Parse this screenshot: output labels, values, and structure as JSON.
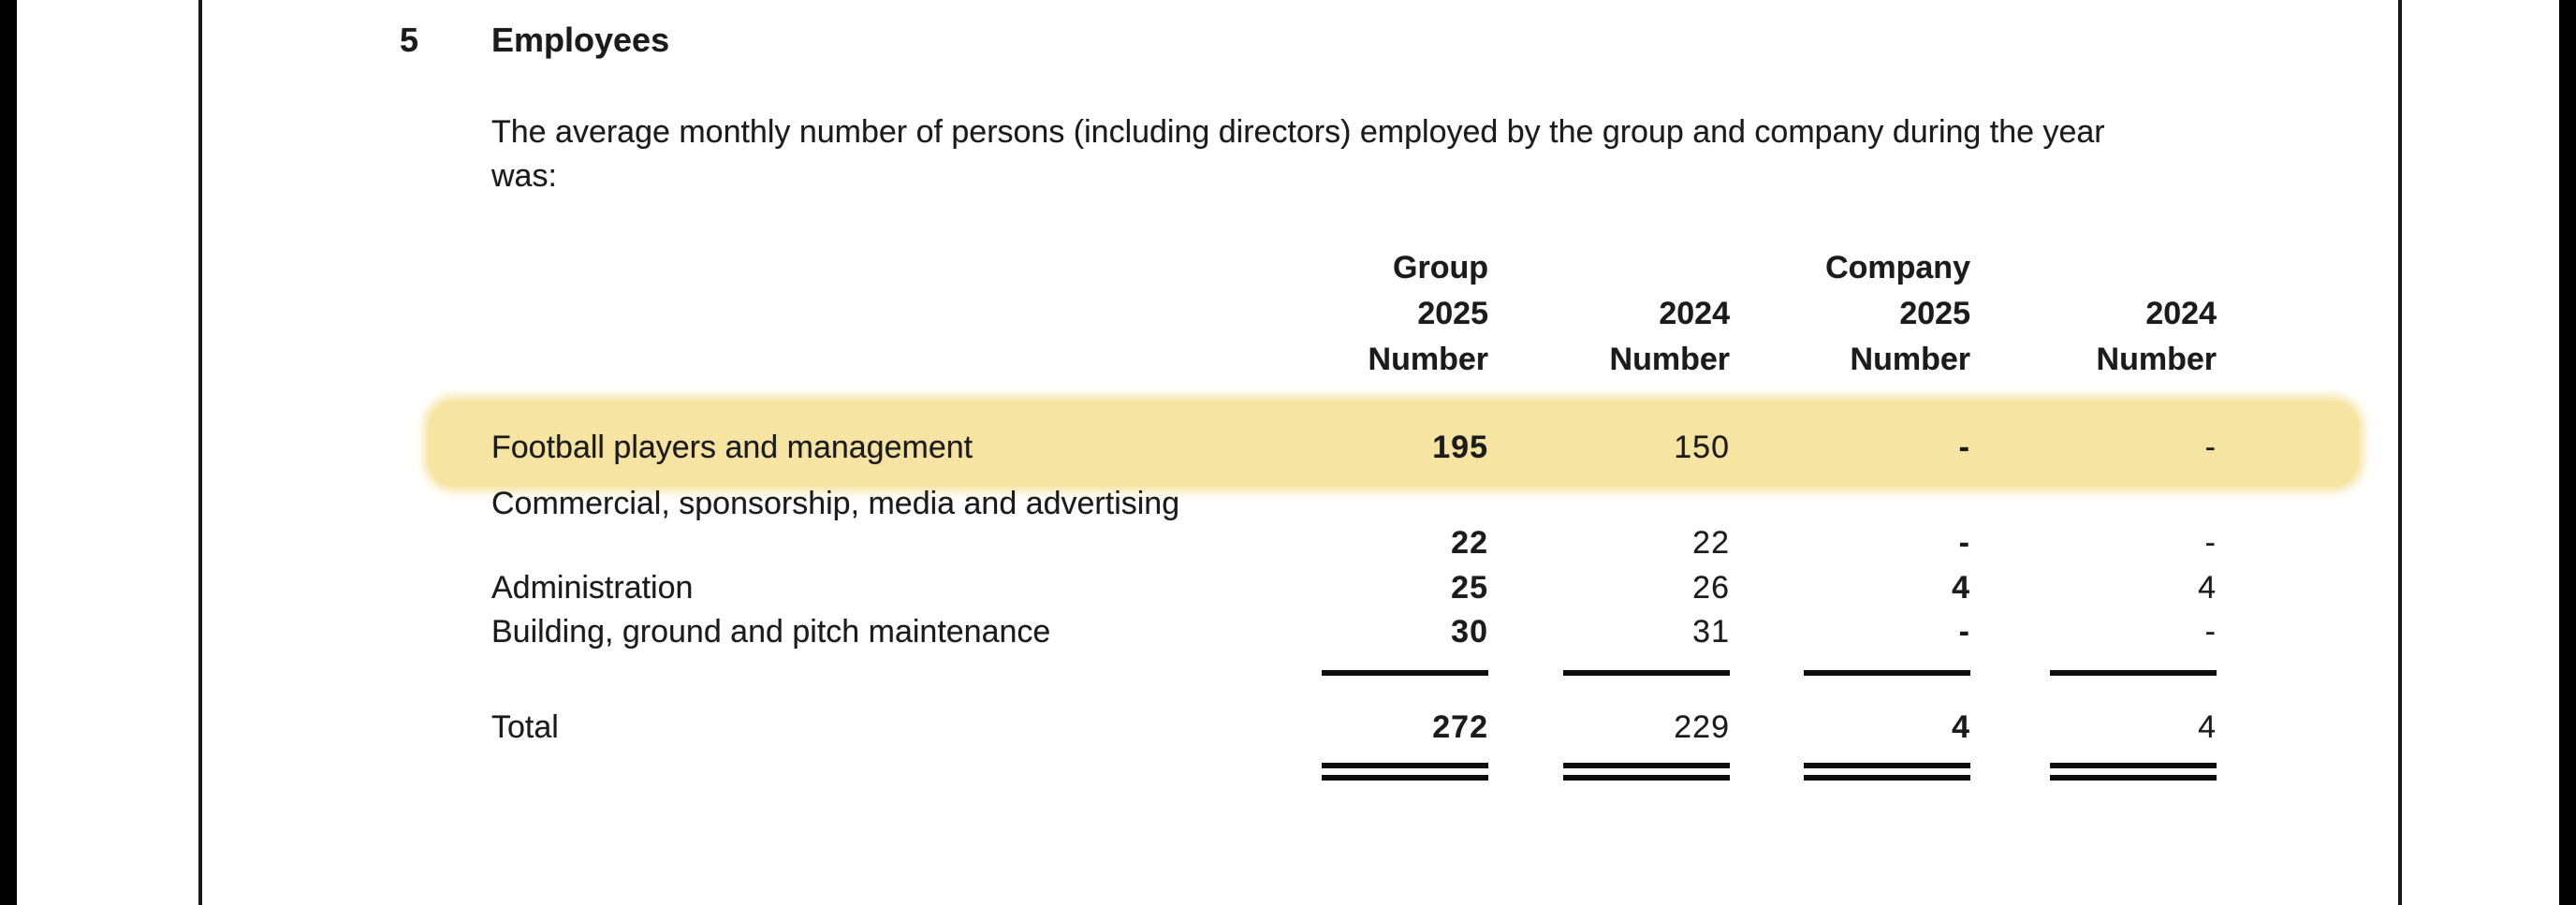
{
  "section": {
    "number": "5",
    "title": "Employees",
    "intro_line1": "The average monthly number of persons (including directors) employed by the group and company during the year",
    "intro_line2": "was:"
  },
  "table": {
    "headers": {
      "group": "Group",
      "company": "Company",
      "year_current": "2025",
      "year_prior": "2024",
      "unit": "Number"
    },
    "rows": [
      {
        "label": "Football players and management",
        "group_2025": "195",
        "group_2024": "150",
        "company_2025": "-",
        "company_2024": "-"
      },
      {
        "label": "Commercial, sponsorship, media and advertising",
        "group_2025": "22",
        "group_2024": "22",
        "company_2025": "-",
        "company_2024": "-"
      },
      {
        "label": "Administration",
        "group_2025": "25",
        "group_2024": "26",
        "company_2025": "4",
        "company_2024": "4"
      },
      {
        "label": "Building, ground and pitch maintenance",
        "group_2025": "30",
        "group_2024": "31",
        "company_2025": "-",
        "company_2024": "-"
      }
    ],
    "total": {
      "label": "Total",
      "group_2025": "272",
      "group_2024": "229",
      "company_2025": "4",
      "company_2024": "4"
    }
  },
  "annotation": {
    "highlight_color": "#f6e4a3"
  }
}
